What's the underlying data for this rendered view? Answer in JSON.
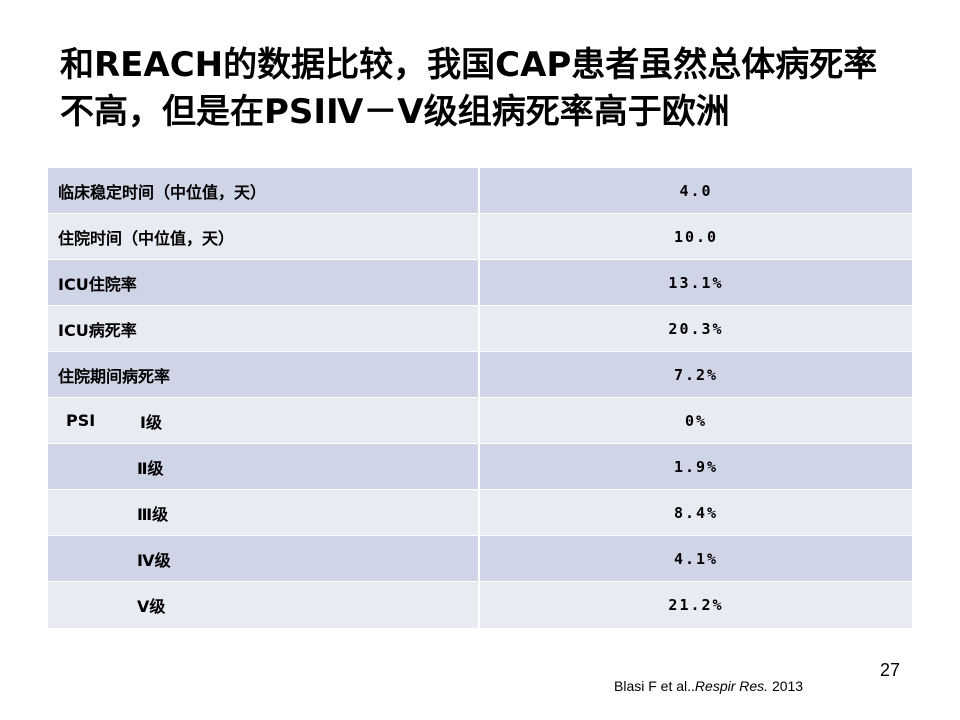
{
  "colors": {
    "row_dark": "#CFD5E6",
    "row_light": "#E8EBF2",
    "title": "#000000",
    "text": "#000000"
  },
  "slide": {
    "title_lines": [
      "和REACH的数据比较，我国CAP患者虽然总体病死率",
      "不高，但是在PSIⅣ－Ⅴ级组病死率高于欧洲"
    ],
    "page_number": "27",
    "citation": {
      "authors": "Blasi F et al..",
      "journal": "Respir Res.",
      "year": "2013"
    }
  },
  "table": {
    "rows": [
      {
        "label": "临床稳定时间（中位值，天）",
        "value": "4.0"
      },
      {
        "label": "住院时间（中位值，天）",
        "value": "10.0"
      },
      {
        "label": "ICU住院率",
        "value": "13.1%"
      },
      {
        "label": "ICU病死率",
        "value": "20.3%"
      },
      {
        "label": "住院期间病死率",
        "value": "7.2%"
      },
      {
        "prefix": "PSI",
        "label": "Ⅰ级",
        "value": "0%"
      },
      {
        "label": "Ⅱ级",
        "value": "1.9%"
      },
      {
        "label": "Ⅲ级",
        "value": "8.4%"
      },
      {
        "label": "Ⅳ级",
        "value": "4.1%"
      },
      {
        "label": "Ⅴ级",
        "value": "21.2%"
      }
    ]
  }
}
